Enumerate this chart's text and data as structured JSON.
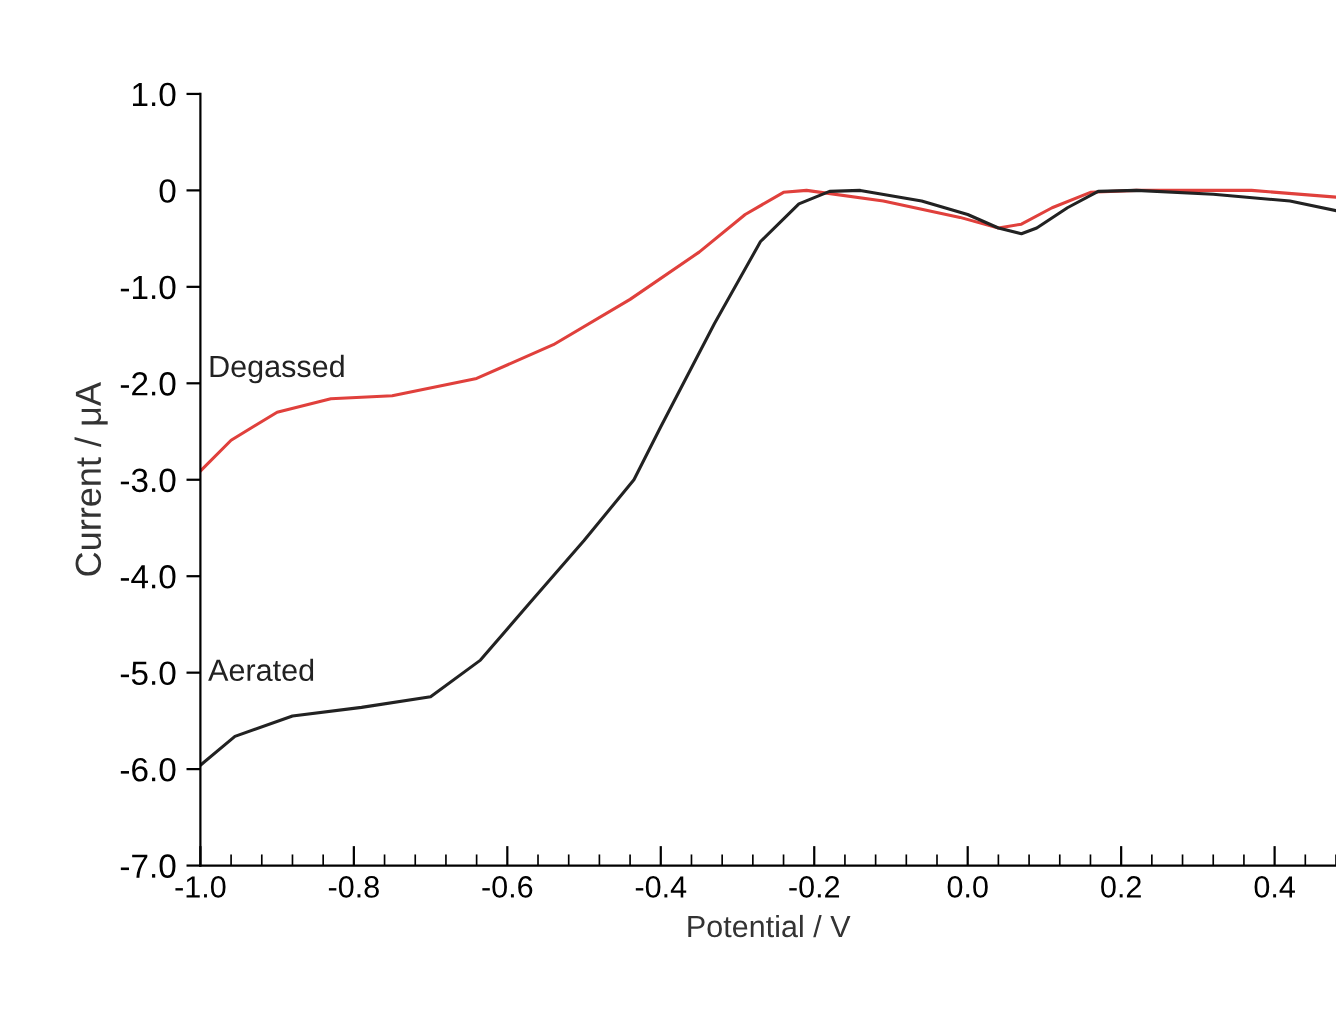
{
  "chart_data": {
    "type": "line",
    "xlabel": "Potential / V",
    "ylabel": "Current / μA",
    "xlim": [
      -1.0,
      0.48
    ],
    "ylim": [
      -7.0,
      1.0
    ],
    "xticks": [
      {
        "value": -1.0,
        "label": "-1.0"
      },
      {
        "value": -0.8,
        "label": "-0.8"
      },
      {
        "value": -0.6,
        "label": "-0.6"
      },
      {
        "value": -0.4,
        "label": "-0.4"
      },
      {
        "value": -0.2,
        "label": "-0.2"
      },
      {
        "value": 0,
        "label": "0.0"
      },
      {
        "value": 0.2,
        "label": "0.2"
      },
      {
        "value": 0.4,
        "label": "0.4"
      }
    ],
    "yticks": [
      {
        "value": 1,
        "label": "1.0"
      },
      0,
      {
        "value": -1,
        "label": "-1.0"
      },
      {
        "value": -2,
        "label": "-2.0"
      },
      {
        "value": -3,
        "label": "-3.0"
      },
      {
        "value": -4,
        "label": "-4.0"
      },
      {
        "value": -5,
        "label": "-5.0"
      },
      {
        "value": -6,
        "label": "-6.0"
      },
      {
        "value": -7,
        "label": "-7.0"
      }
    ],
    "grid": false,
    "legend": false,
    "marker": "none",
    "line_style": "solid",
    "series": [
      {
        "name": "Degassed",
        "color": "#e0403c",
        "x": [
          -1.0,
          -0.96,
          -0.9,
          -0.83,
          -0.75,
          -0.64,
          -0.54,
          -0.44,
          -0.35,
          -0.29,
          -0.24,
          -0.21,
          -0.11,
          -0.01,
          0.04,
          0.07,
          0.11,
          0.16,
          0.22,
          0.37,
          0.48
        ],
        "values": [
          -2.91,
          -2.59,
          -2.3,
          -2.16,
          -2.13,
          -1.95,
          -1.6,
          -1.13,
          -0.64,
          -0.25,
          -0.02,
          0.0,
          -0.11,
          -0.28,
          -0.39,
          -0.35,
          -0.18,
          -0.02,
          0.0,
          0.0,
          -0.07
        ]
      },
      {
        "name": "Aerated",
        "color": "#222222",
        "x": [
          -1.0,
          -0.955,
          -0.88,
          -0.79,
          -0.7,
          -0.635,
          -0.57,
          -0.5,
          -0.435,
          -0.4,
          -0.33,
          -0.27,
          -0.22,
          -0.18,
          -0.14,
          -0.06,
          0.0,
          0.04,
          0.07,
          0.09,
          0.13,
          0.17,
          0.22,
          0.32,
          0.42,
          0.48
        ],
        "values": [
          -5.96,
          -5.66,
          -5.45,
          -5.36,
          -5.25,
          -4.87,
          -4.27,
          -3.63,
          -3.0,
          -2.45,
          -1.38,
          -0.53,
          -0.14,
          -0.01,
          0.0,
          -0.11,
          -0.25,
          -0.39,
          -0.45,
          -0.39,
          -0.18,
          -0.01,
          0.0,
          -0.04,
          -0.11,
          -0.21
        ]
      }
    ]
  }
}
